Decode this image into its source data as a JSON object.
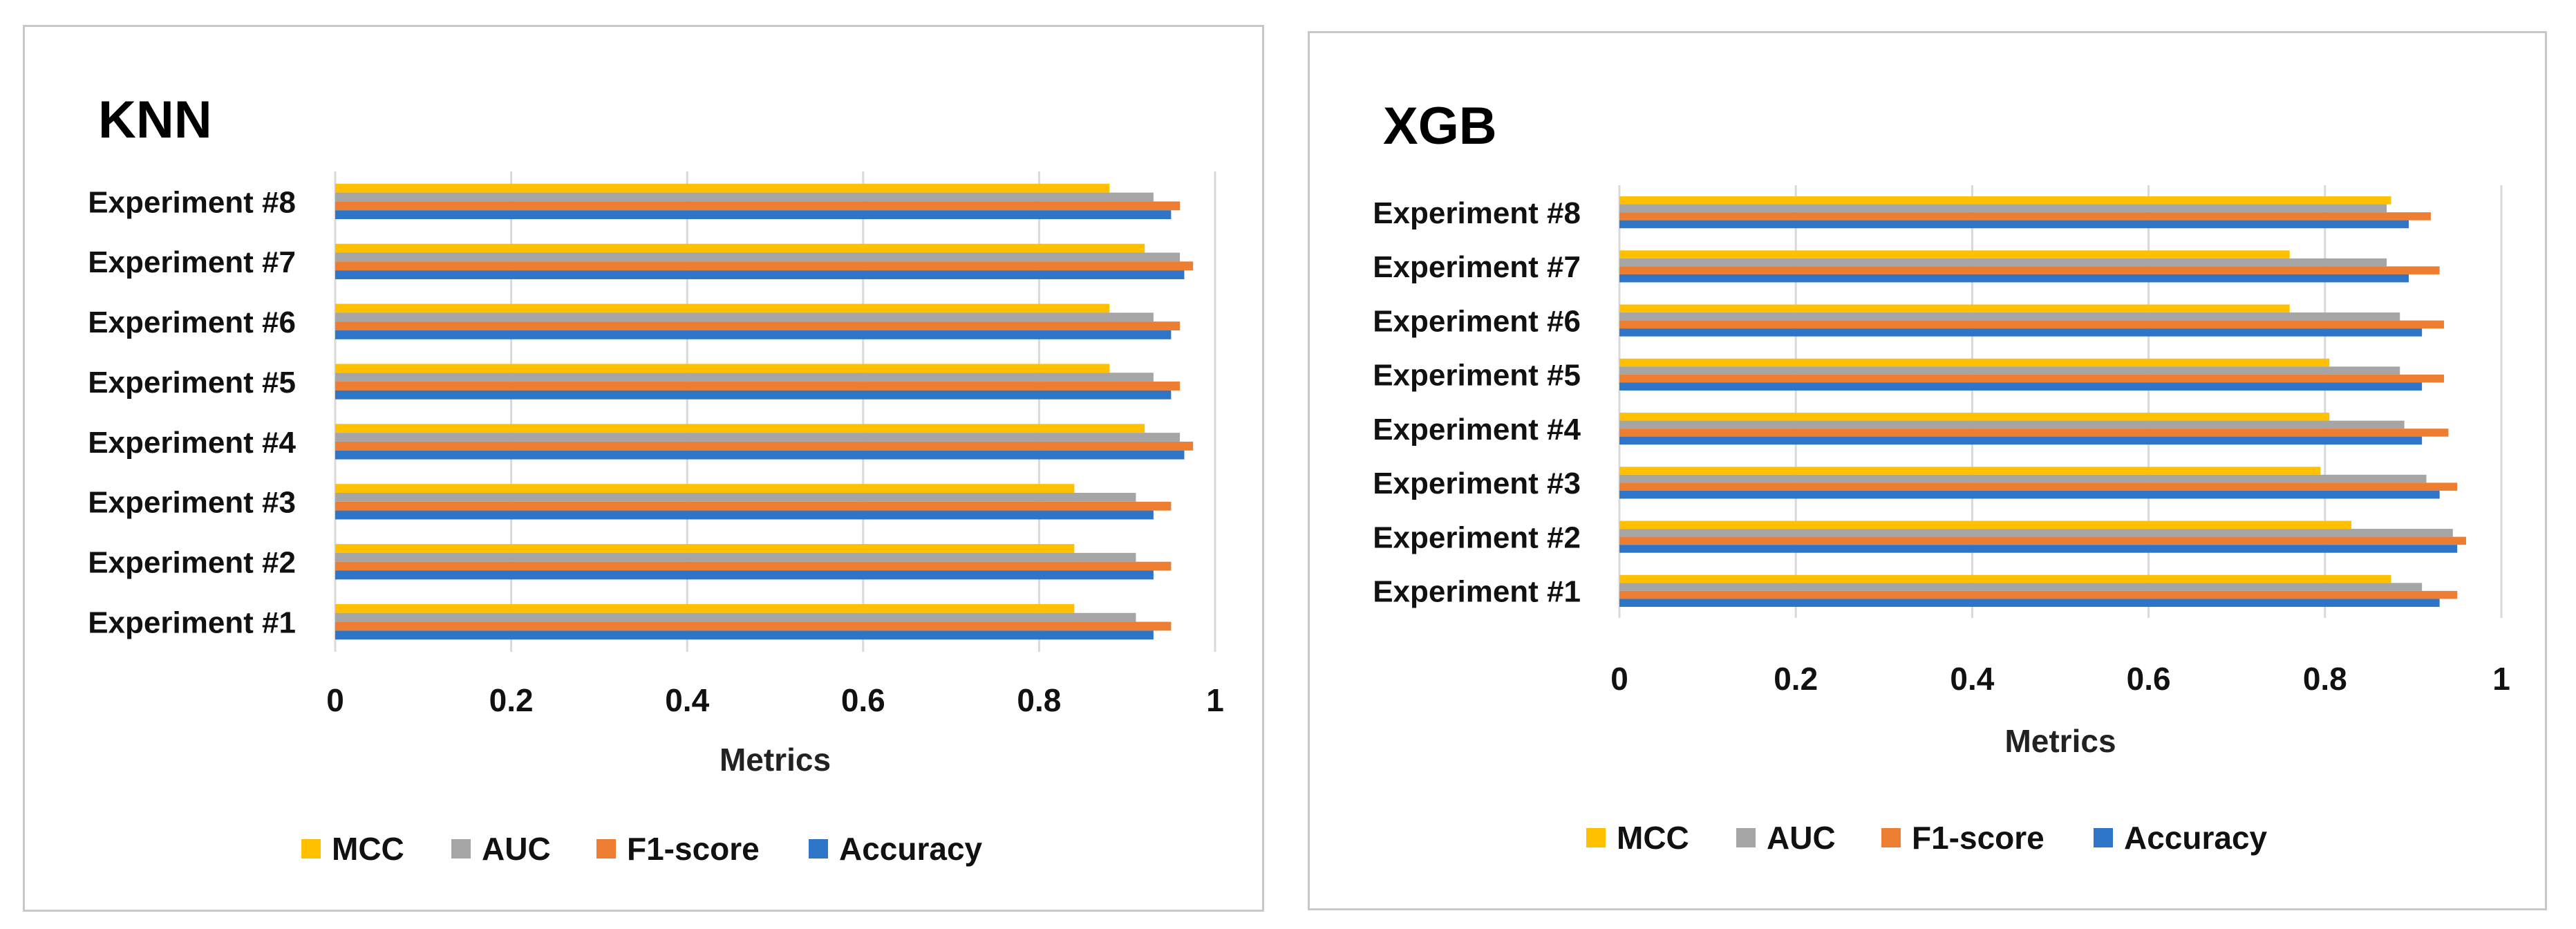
{
  "chart_data": [
    {
      "type": "bar",
      "orientation": "horizontal",
      "title": "KNN",
      "xlabel": "Metrics",
      "ylabel": "",
      "xlim": [
        0,
        1
      ],
      "xticks": [
        "0",
        "0.2",
        "0.4",
        "0.6",
        "0.8",
        "1"
      ],
      "grid": true,
      "legend": "bottom",
      "categories": [
        "Experiment #1",
        "Experiment #2",
        "Experiment #3",
        "Experiment #4",
        "Experiment #5",
        "Experiment #6",
        "Experiment #7",
        "Experiment #8"
      ],
      "series": [
        {
          "name": "MCC",
          "color": "#FFC000",
          "values": [
            0.84,
            0.84,
            0.84,
            0.92,
            0.88,
            0.88,
            0.92,
            0.88
          ]
        },
        {
          "name": "AUC",
          "color": "#A5A5A5",
          "values": [
            0.91,
            0.91,
            0.91,
            0.96,
            0.93,
            0.93,
            0.96,
            0.93
          ]
        },
        {
          "name": "F1-score",
          "color": "#ED7D31",
          "values": [
            0.95,
            0.95,
            0.95,
            0.975,
            0.96,
            0.96,
            0.975,
            0.96
          ]
        },
        {
          "name": "Accuracy",
          "color": "#2E75C8",
          "values": [
            0.93,
            0.93,
            0.93,
            0.965,
            0.95,
            0.95,
            0.965,
            0.95
          ]
        }
      ]
    },
    {
      "type": "bar",
      "orientation": "horizontal",
      "title": "XGB",
      "xlabel": "Metrics",
      "ylabel": "",
      "xlim": [
        0,
        1
      ],
      "xticks": [
        "0",
        "0.2",
        "0.4",
        "0.6",
        "0.8",
        "1"
      ],
      "grid": true,
      "legend": "bottom",
      "categories": [
        "Experiment #1",
        "Experiment #2",
        "Experiment #3",
        "Experiment #4",
        "Experiment #5",
        "Experiment #6",
        "Experiment #7",
        "Experiment #8"
      ],
      "series": [
        {
          "name": "MCC",
          "color": "#FFC000",
          "values": [
            0.875,
            0.83,
            0.795,
            0.805,
            0.805,
            0.76,
            0.76,
            0.875
          ]
        },
        {
          "name": "AUC",
          "color": "#A5A5A5",
          "values": [
            0.91,
            0.945,
            0.915,
            0.89,
            0.885,
            0.885,
            0.87,
            0.87
          ]
        },
        {
          "name": "F1-score",
          "color": "#ED7D31",
          "values": [
            0.95,
            0.96,
            0.95,
            0.94,
            0.935,
            0.935,
            0.93,
            0.92
          ]
        },
        {
          "name": "Accuracy",
          "color": "#2E75C8",
          "values": [
            0.93,
            0.95,
            0.93,
            0.91,
            0.91,
            0.91,
            0.895,
            0.895
          ]
        }
      ]
    }
  ]
}
